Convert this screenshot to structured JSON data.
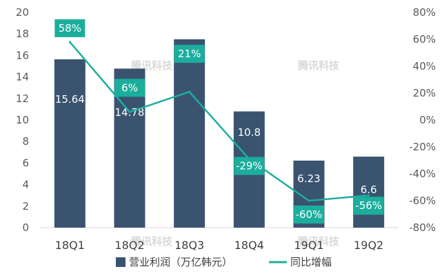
{
  "chart_data": {
    "type": "bar",
    "categories": [
      "18Q1",
      "18Q2",
      "18Q3",
      "18Q4",
      "19Q1",
      "19Q2"
    ],
    "series": [
      {
        "name": "营业利润（万亿韩元）",
        "type": "bar",
        "axis": "left",
        "values": [
          15.64,
          14.78,
          17.5,
          10.8,
          6.23,
          6.6
        ],
        "labels": [
          "15.64",
          "14.78",
          "17.5",
          "10.8",
          "6.23",
          "6.6"
        ],
        "color": "#3a5470"
      },
      {
        "name": "同比增幅",
        "type": "line",
        "axis": "right",
        "values": [
          58,
          6,
          21,
          -29,
          -60,
          -56
        ],
        "labels": [
          "58%",
          "6%",
          "21%",
          "-29%",
          "-60%",
          "-56%"
        ],
        "color": "#1cae9d"
      }
    ],
    "y_left": {
      "ylim": [
        0,
        20
      ],
      "ticks": [
        "0",
        "2",
        "4",
        "6",
        "8",
        "10",
        "12",
        "14",
        "16",
        "18",
        "20"
      ]
    },
    "y_right": {
      "ylim": [
        -80,
        80
      ],
      "ticks": [
        "-80%",
        "-60%",
        "-40%",
        "-20%",
        "0%",
        "20%",
        "40%",
        "60%",
        "80%"
      ]
    },
    "grid": false,
    "legend_position": "bottom"
  },
  "watermark": "腾讯科技"
}
